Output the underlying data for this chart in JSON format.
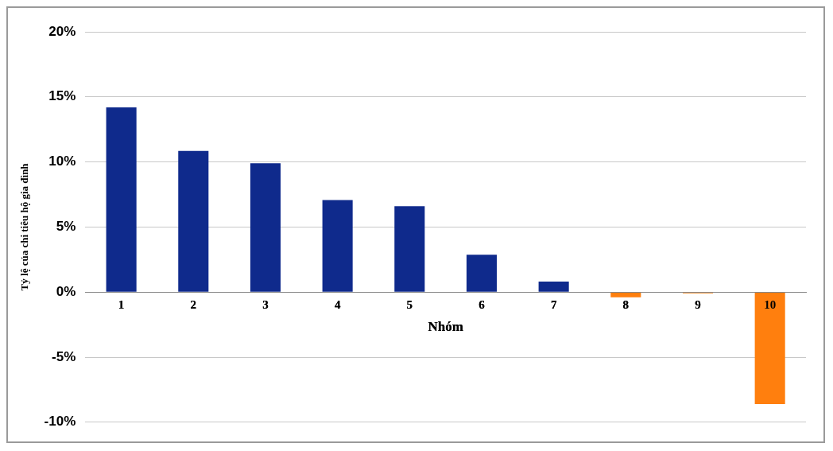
{
  "chart_data": {
    "type": "bar",
    "xlabel": "Nhóm",
    "ylabel": "Tỷ lệ của chi tiêu hộ gia đình",
    "categories": [
      "1",
      "2",
      "3",
      "4",
      "5",
      "6",
      "7",
      "8",
      "9",
      "10"
    ],
    "values": [
      0.142,
      0.1085,
      0.099,
      0.0707,
      0.066,
      0.0287,
      0.008,
      -0.004,
      -0.001,
      -0.086
    ],
    "colors": [
      "#0f2a8c",
      "#0f2a8c",
      "#0f2a8c",
      "#0f2a8c",
      "#0f2a8c",
      "#0f2a8c",
      "#0f2a8c",
      "#ff7f0e",
      "#ff7f0e",
      "#ff7f0e"
    ],
    "ylim": [
      -0.1,
      0.2
    ],
    "yticks": [
      {
        "value": -0.1,
        "label": "-10%"
      },
      {
        "value": -0.05,
        "label": "-5%"
      },
      {
        "value": 0,
        "label": "0%"
      },
      {
        "value": 0.05,
        "label": "5%"
      },
      {
        "value": 0.1,
        "label": "10%"
      },
      {
        "value": 0.15,
        "label": "15%"
      },
      {
        "value": 0.2,
        "label": "20%"
      }
    ],
    "grid": "y",
    "legend": false
  }
}
